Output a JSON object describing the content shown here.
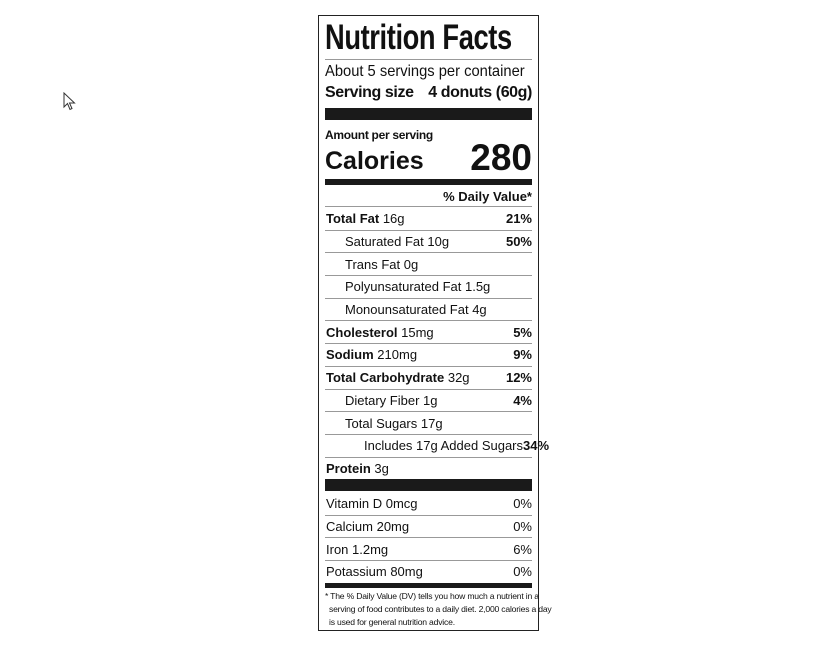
{
  "header": {
    "title": "Nutrition Facts",
    "servings": "About 5 servings per container",
    "serving_size_label": "Serving size",
    "serving_size": "4 donuts (60g)"
  },
  "calories": {
    "amount_label": "Amount per serving",
    "label": "Calories",
    "value": "280"
  },
  "daily_value_header": "% Daily Value*",
  "nutrients": [
    {
      "name": "Total Fat",
      "amount": "16g",
      "dv": "21%",
      "sub": [
        {
          "name": "Saturated Fat",
          "amount": "10g",
          "dv": "50%"
        },
        {
          "name": "Trans Fat",
          "amount": "0g"
        },
        {
          "name": "Polyunsaturated Fat",
          "amount": "1.5g"
        },
        {
          "name": "Monounsaturated Fat",
          "amount": "4g"
        }
      ]
    },
    {
      "name": "Cholesterol",
      "amount": "15mg",
      "dv": "5%"
    },
    {
      "name": "Sodium",
      "amount": "210mg",
      "dv": "9%"
    },
    {
      "name": "Total Carbohydrate",
      "amount": "32g",
      "dv": "12%",
      "sub": [
        {
          "name": "Dietary Fiber",
          "amount": "1g",
          "dv": "4%"
        },
        {
          "name": "Total Sugars",
          "amount": "17g",
          "sub": [
            {
              "name": "Includes 17g Added Sugars",
              "dv": "34%"
            }
          ]
        }
      ]
    },
    {
      "name": "Protein",
      "amount": "3g"
    }
  ],
  "vitamins": [
    {
      "name": "Vitamin D",
      "amount": "0mcg",
      "dv": "0%"
    },
    {
      "name": "Calcium",
      "amount": "20mg",
      "dv": "0%"
    },
    {
      "name": "Iron",
      "amount": "1.2mg",
      "dv": "6%"
    },
    {
      "name": "Potassium",
      "amount": "80mg",
      "dv": "0%"
    }
  ],
  "footnote": [
    "* The % Daily Value (DV) tells you how much a nutrient in a",
    "serving of food contributes to a daily diet. 2,000 calories a day",
    "is used for general nutrition advice."
  ]
}
